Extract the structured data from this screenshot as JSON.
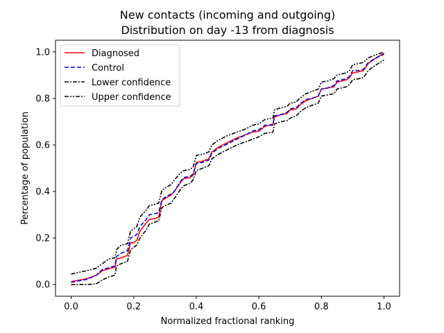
{
  "chart_data": {
    "type": "line",
    "title": "New contacts (incoming and outgoing)",
    "subtitle": "Distribution on day -13 from diagnosis",
    "xlabel": "Normalized fractional ranking",
    "ylabel": "Percentage of population",
    "xlim": [
      -0.05,
      1.05
    ],
    "ylim": [
      -0.05,
      1.05
    ],
    "xticks": [
      "0.0",
      "0.2",
      "0.4",
      "0.6",
      "0.8",
      "1.0"
    ],
    "yticks": [
      "0.0",
      "0.2",
      "0.4",
      "0.6",
      "0.8",
      "1.0"
    ],
    "grid": false,
    "legend_position": "top-left",
    "series": [
      {
        "name": "Diagnosed",
        "color": "#ff0000",
        "dash": "solid",
        "points": [
          [
            0.0,
            0.013
          ],
          [
            0.05,
            0.025
          ],
          [
            0.08,
            0.04
          ],
          [
            0.1,
            0.06
          ],
          [
            0.12,
            0.068
          ],
          [
            0.14,
            0.075
          ],
          [
            0.145,
            0.11
          ],
          [
            0.16,
            0.115
          ],
          [
            0.18,
            0.125
          ],
          [
            0.19,
            0.18
          ],
          [
            0.2,
            0.18
          ],
          [
            0.21,
            0.19
          ],
          [
            0.22,
            0.23
          ],
          [
            0.24,
            0.265
          ],
          [
            0.25,
            0.28
          ],
          [
            0.27,
            0.285
          ],
          [
            0.28,
            0.29
          ],
          [
            0.29,
            0.36
          ],
          [
            0.3,
            0.37
          ],
          [
            0.32,
            0.385
          ],
          [
            0.33,
            0.4
          ],
          [
            0.35,
            0.44
          ],
          [
            0.36,
            0.455
          ],
          [
            0.38,
            0.46
          ],
          [
            0.39,
            0.47
          ],
          [
            0.4,
            0.525
          ],
          [
            0.42,
            0.53
          ],
          [
            0.44,
            0.54
          ],
          [
            0.45,
            0.57
          ],
          [
            0.47,
            0.59
          ],
          [
            0.5,
            0.61
          ],
          [
            0.53,
            0.63
          ],
          [
            0.56,
            0.645
          ],
          [
            0.58,
            0.655
          ],
          [
            0.6,
            0.66
          ],
          [
            0.62,
            0.68
          ],
          [
            0.645,
            0.69
          ],
          [
            0.65,
            0.72
          ],
          [
            0.67,
            0.73
          ],
          [
            0.69,
            0.735
          ],
          [
            0.7,
            0.75
          ],
          [
            0.72,
            0.755
          ],
          [
            0.73,
            0.77
          ],
          [
            0.75,
            0.79
          ],
          [
            0.77,
            0.8
          ],
          [
            0.79,
            0.81
          ],
          [
            0.8,
            0.84
          ],
          [
            0.82,
            0.845
          ],
          [
            0.84,
            0.85
          ],
          [
            0.85,
            0.87
          ],
          [
            0.88,
            0.88
          ],
          [
            0.89,
            0.89
          ],
          [
            0.9,
            0.91
          ],
          [
            0.92,
            0.915
          ],
          [
            0.935,
            0.92
          ],
          [
            0.95,
            0.95
          ],
          [
            0.97,
            0.97
          ],
          [
            1.0,
            0.995
          ]
        ]
      },
      {
        "name": "Control",
        "color": "#0000ff",
        "dash": "dashed",
        "points": [
          [
            0.0,
            0.01
          ],
          [
            0.05,
            0.022
          ],
          [
            0.08,
            0.04
          ],
          [
            0.1,
            0.065
          ],
          [
            0.12,
            0.072
          ],
          [
            0.14,
            0.08
          ],
          [
            0.145,
            0.12
          ],
          [
            0.16,
            0.135
          ],
          [
            0.18,
            0.145
          ],
          [
            0.19,
            0.2
          ],
          [
            0.21,
            0.215
          ],
          [
            0.22,
            0.25
          ],
          [
            0.24,
            0.28
          ],
          [
            0.25,
            0.3
          ],
          [
            0.27,
            0.305
          ],
          [
            0.28,
            0.31
          ],
          [
            0.29,
            0.365
          ],
          [
            0.3,
            0.375
          ],
          [
            0.32,
            0.39
          ],
          [
            0.33,
            0.4
          ],
          [
            0.35,
            0.445
          ],
          [
            0.36,
            0.46
          ],
          [
            0.38,
            0.465
          ],
          [
            0.39,
            0.475
          ],
          [
            0.4,
            0.52
          ],
          [
            0.42,
            0.525
          ],
          [
            0.44,
            0.535
          ],
          [
            0.45,
            0.565
          ],
          [
            0.47,
            0.585
          ],
          [
            0.5,
            0.605
          ],
          [
            0.53,
            0.625
          ],
          [
            0.56,
            0.645
          ],
          [
            0.58,
            0.66
          ],
          [
            0.6,
            0.665
          ],
          [
            0.62,
            0.685
          ],
          [
            0.645,
            0.685
          ],
          [
            0.65,
            0.725
          ],
          [
            0.67,
            0.73
          ],
          [
            0.69,
            0.74
          ],
          [
            0.7,
            0.755
          ],
          [
            0.72,
            0.76
          ],
          [
            0.73,
            0.775
          ],
          [
            0.75,
            0.795
          ],
          [
            0.77,
            0.8
          ],
          [
            0.79,
            0.81
          ],
          [
            0.8,
            0.84
          ],
          [
            0.82,
            0.845
          ],
          [
            0.84,
            0.855
          ],
          [
            0.85,
            0.875
          ],
          [
            0.88,
            0.885
          ],
          [
            0.89,
            0.895
          ],
          [
            0.9,
            0.92
          ],
          [
            0.92,
            0.92
          ],
          [
            0.935,
            0.925
          ],
          [
            0.95,
            0.955
          ],
          [
            0.97,
            0.97
          ],
          [
            1.0,
            0.99
          ]
        ]
      },
      {
        "name": "Lower confidence",
        "color": "#000000",
        "dash": "dashdot",
        "points": [
          [
            0.0,
            0.0
          ],
          [
            0.05,
            0.0
          ],
          [
            0.08,
            0.003
          ],
          [
            0.1,
            0.02
          ],
          [
            0.12,
            0.033
          ],
          [
            0.14,
            0.04
          ],
          [
            0.145,
            0.08
          ],
          [
            0.16,
            0.09
          ],
          [
            0.18,
            0.1
          ],
          [
            0.19,
            0.15
          ],
          [
            0.21,
            0.17
          ],
          [
            0.22,
            0.2
          ],
          [
            0.24,
            0.235
          ],
          [
            0.25,
            0.26
          ],
          [
            0.27,
            0.27
          ],
          [
            0.28,
            0.275
          ],
          [
            0.29,
            0.33
          ],
          [
            0.3,
            0.34
          ],
          [
            0.32,
            0.35
          ],
          [
            0.33,
            0.37
          ],
          [
            0.35,
            0.41
          ],
          [
            0.36,
            0.425
          ],
          [
            0.38,
            0.435
          ],
          [
            0.39,
            0.45
          ],
          [
            0.4,
            0.49
          ],
          [
            0.42,
            0.5
          ],
          [
            0.44,
            0.51
          ],
          [
            0.45,
            0.54
          ],
          [
            0.47,
            0.56
          ],
          [
            0.5,
            0.58
          ],
          [
            0.53,
            0.6
          ],
          [
            0.56,
            0.615
          ],
          [
            0.58,
            0.625
          ],
          [
            0.6,
            0.635
          ],
          [
            0.62,
            0.65
          ],
          [
            0.645,
            0.655
          ],
          [
            0.65,
            0.69
          ],
          [
            0.67,
            0.7
          ],
          [
            0.69,
            0.705
          ],
          [
            0.7,
            0.715
          ],
          [
            0.72,
            0.725
          ],
          [
            0.73,
            0.74
          ],
          [
            0.75,
            0.76
          ],
          [
            0.77,
            0.77
          ],
          [
            0.79,
            0.78
          ],
          [
            0.8,
            0.81
          ],
          [
            0.82,
            0.815
          ],
          [
            0.84,
            0.82
          ],
          [
            0.85,
            0.84
          ],
          [
            0.88,
            0.85
          ],
          [
            0.89,
            0.86
          ],
          [
            0.9,
            0.88
          ],
          [
            0.92,
            0.885
          ],
          [
            0.935,
            0.89
          ],
          [
            0.95,
            0.92
          ],
          [
            0.97,
            0.94
          ],
          [
            1.0,
            0.965
          ]
        ]
      },
      {
        "name": "Upper confidence",
        "color": "#000000",
        "dash": "dashdotdot",
        "points": [
          [
            0.0,
            0.045
          ],
          [
            0.05,
            0.06
          ],
          [
            0.08,
            0.07
          ],
          [
            0.1,
            0.09
          ],
          [
            0.12,
            0.11
          ],
          [
            0.14,
            0.115
          ],
          [
            0.145,
            0.15
          ],
          [
            0.16,
            0.17
          ],
          [
            0.18,
            0.175
          ],
          [
            0.19,
            0.23
          ],
          [
            0.21,
            0.25
          ],
          [
            0.22,
            0.29
          ],
          [
            0.24,
            0.32
          ],
          [
            0.25,
            0.34
          ],
          [
            0.27,
            0.345
          ],
          [
            0.28,
            0.35
          ],
          [
            0.29,
            0.405
          ],
          [
            0.3,
            0.415
          ],
          [
            0.32,
            0.43
          ],
          [
            0.33,
            0.45
          ],
          [
            0.35,
            0.48
          ],
          [
            0.36,
            0.49
          ],
          [
            0.38,
            0.495
          ],
          [
            0.39,
            0.505
          ],
          [
            0.4,
            0.555
          ],
          [
            0.42,
            0.56
          ],
          [
            0.44,
            0.57
          ],
          [
            0.45,
            0.6
          ],
          [
            0.47,
            0.62
          ],
          [
            0.5,
            0.64
          ],
          [
            0.53,
            0.655
          ],
          [
            0.56,
            0.67
          ],
          [
            0.58,
            0.685
          ],
          [
            0.6,
            0.69
          ],
          [
            0.62,
            0.71
          ],
          [
            0.645,
            0.715
          ],
          [
            0.65,
            0.75
          ],
          [
            0.67,
            0.76
          ],
          [
            0.69,
            0.765
          ],
          [
            0.7,
            0.78
          ],
          [
            0.72,
            0.785
          ],
          [
            0.73,
            0.8
          ],
          [
            0.75,
            0.82
          ],
          [
            0.77,
            0.83
          ],
          [
            0.79,
            0.84
          ],
          [
            0.8,
            0.87
          ],
          [
            0.82,
            0.875
          ],
          [
            0.84,
            0.885
          ],
          [
            0.85,
            0.9
          ],
          [
            0.88,
            0.91
          ],
          [
            0.89,
            0.92
          ],
          [
            0.9,
            0.945
          ],
          [
            0.92,
            0.95
          ],
          [
            0.935,
            0.955
          ],
          [
            0.95,
            0.975
          ],
          [
            0.97,
            0.985
          ],
          [
            1.0,
            1.0
          ]
        ]
      }
    ]
  }
}
